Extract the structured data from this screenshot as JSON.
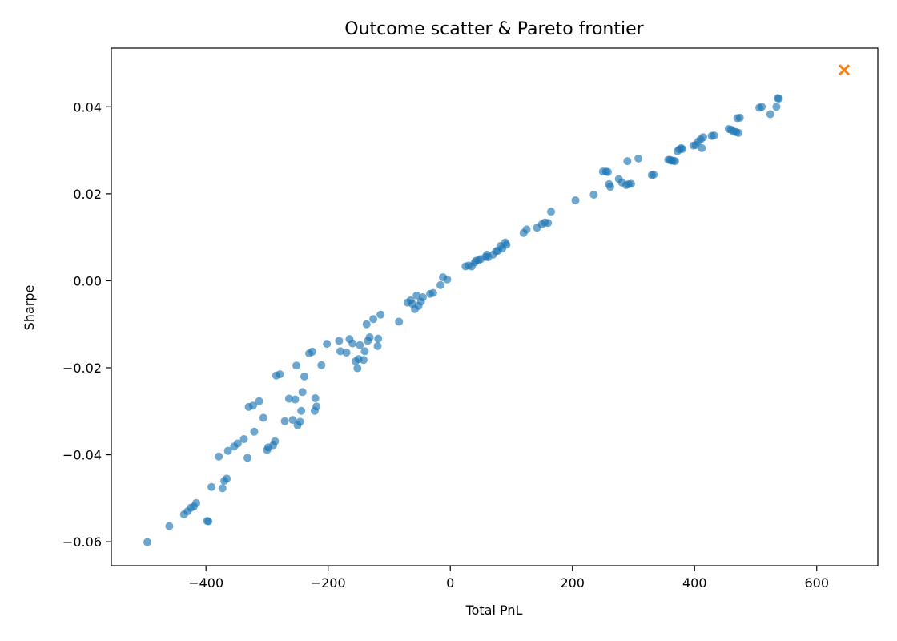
{
  "chart_data": {
    "type": "scatter",
    "title": "Outcome scatter & Pareto frontier",
    "xlabel": "Total PnL",
    "ylabel": "Sharpe",
    "xlim": [
      -555,
      700
    ],
    "ylim": [
      -0.0655,
      0.0535
    ],
    "xticks": [
      -400,
      -200,
      0,
      200,
      400,
      600
    ],
    "xtick_labels": [
      "−400",
      "−200",
      "0",
      "200",
      "400",
      "600"
    ],
    "yticks": [
      -0.06,
      -0.04,
      -0.02,
      0.0,
      0.02,
      0.04
    ],
    "ytick_labels": [
      "−0.06",
      "−0.04",
      "−0.02",
      "0.00",
      "0.02",
      "0.04"
    ],
    "grid": false,
    "legend": false,
    "series": [
      {
        "marker": "circle",
        "color": "#1f77b4",
        "alpha": 0.65,
        "points": [
          [
            -496,
            -0.0601
          ],
          [
            -460,
            -0.0564
          ],
          [
            -436,
            -0.0537
          ],
          [
            -430,
            -0.053
          ],
          [
            -425,
            -0.0522
          ],
          [
            -420,
            -0.0519
          ],
          [
            -416,
            -0.0511
          ],
          [
            -398,
            -0.0552
          ],
          [
            -396,
            -0.0553
          ],
          [
            -391,
            -0.0474
          ],
          [
            -379,
            -0.0404
          ],
          [
            -373,
            -0.0477
          ],
          [
            -370,
            -0.046
          ],
          [
            -366,
            -0.0455
          ],
          [
            -364,
            -0.0391
          ],
          [
            -354,
            -0.0381
          ],
          [
            -348,
            -0.0374
          ],
          [
            -338,
            -0.0364
          ],
          [
            -332,
            -0.0407
          ],
          [
            -330,
            -0.029
          ],
          [
            -323,
            -0.0287
          ],
          [
            -321,
            -0.0347
          ],
          [
            -313,
            -0.0277
          ],
          [
            -306,
            -0.0315
          ],
          [
            -300,
            -0.0389
          ],
          [
            -298,
            -0.0383
          ],
          [
            -290,
            -0.0378
          ],
          [
            -287,
            -0.0369
          ],
          [
            -285,
            -0.0218
          ],
          [
            -279,
            -0.0215
          ],
          [
            -271,
            -0.0323
          ],
          [
            -264,
            -0.0271
          ],
          [
            -258,
            -0.032
          ],
          [
            -254,
            -0.0273
          ],
          [
            -252,
            -0.0195
          ],
          [
            -250,
            -0.0332
          ],
          [
            -246,
            -0.0324
          ],
          [
            -244,
            -0.0299
          ],
          [
            -242,
            -0.0256
          ],
          [
            -239,
            -0.022
          ],
          [
            -231,
            -0.0167
          ],
          [
            -226,
            -0.0163
          ],
          [
            -222,
            -0.0299
          ],
          [
            -221,
            -0.027
          ],
          [
            -219,
            -0.0289
          ],
          [
            -211,
            -0.0194
          ],
          [
            -202,
            -0.0145
          ],
          [
            -182,
            -0.0138
          ],
          [
            -180,
            -0.0162
          ],
          [
            -170,
            -0.0165
          ],
          [
            -165,
            -0.0134
          ],
          [
            -160,
            -0.0144
          ],
          [
            -155,
            -0.0185
          ],
          [
            -152,
            -0.0201
          ],
          [
            -150,
            -0.018
          ],
          [
            -148,
            -0.0148
          ],
          [
            -142,
            -0.0182
          ],
          [
            -140,
            -0.0162
          ],
          [
            -137,
            -0.01
          ],
          [
            -135,
            -0.0138
          ],
          [
            -132,
            -0.013
          ],
          [
            -126,
            -0.0088
          ],
          [
            -119,
            -0.015
          ],
          [
            -118,
            -0.0133
          ],
          [
            -114,
            -0.0078
          ],
          [
            -84,
            -0.0094
          ],
          [
            -70,
            -0.005
          ],
          [
            -65,
            -0.0045
          ],
          [
            -62,
            -0.0053
          ],
          [
            -58,
            -0.0065
          ],
          [
            -55,
            -0.0034
          ],
          [
            -52,
            -0.0058
          ],
          [
            -48,
            -0.0048
          ],
          [
            -45,
            -0.0038
          ],
          [
            -33,
            -0.003
          ],
          [
            -28,
            -0.0028
          ],
          [
            -16,
            -0.001
          ],
          [
            -12,
            0.0008
          ],
          [
            -5,
            0.0003
          ],
          [
            25,
            0.0033
          ],
          [
            30,
            0.0035
          ],
          [
            35,
            0.0033
          ],
          [
            40,
            0.0042
          ],
          [
            42,
            0.0046
          ],
          [
            46,
            0.0047
          ],
          [
            50,
            0.005
          ],
          [
            58,
            0.0055
          ],
          [
            60,
            0.006
          ],
          [
            62,
            0.0054
          ],
          [
            70,
            0.006
          ],
          [
            75,
            0.0068
          ],
          [
            78,
            0.0069
          ],
          [
            82,
            0.008
          ],
          [
            85,
            0.0074
          ],
          [
            90,
            0.0088
          ],
          [
            92,
            0.0083
          ],
          [
            120,
            0.011
          ],
          [
            125,
            0.0118
          ],
          [
            142,
            0.0122
          ],
          [
            150,
            0.013
          ],
          [
            155,
            0.0134
          ],
          [
            160,
            0.0133
          ],
          [
            165,
            0.0159
          ],
          [
            205,
            0.0185
          ],
          [
            235,
            0.0198
          ],
          [
            250,
            0.0251
          ],
          [
            255,
            0.0251
          ],
          [
            258,
            0.025
          ],
          [
            260,
            0.0222
          ],
          [
            262,
            0.0216
          ],
          [
            276,
            0.0234
          ],
          [
            281,
            0.0226
          ],
          [
            288,
            0.022
          ],
          [
            290,
            0.0275
          ],
          [
            292,
            0.0222
          ],
          [
            296,
            0.0223
          ],
          [
            308,
            0.0281
          ],
          [
            330,
            0.0243
          ],
          [
            333,
            0.0244
          ],
          [
            357,
            0.0278
          ],
          [
            360,
            0.0278
          ],
          [
            362,
            0.0276
          ],
          [
            365,
            0.0276
          ],
          [
            368,
            0.0275
          ],
          [
            372,
            0.0298
          ],
          [
            375,
            0.0302
          ],
          [
            378,
            0.0305
          ],
          [
            380,
            0.0303
          ],
          [
            398,
            0.0311
          ],
          [
            402,
            0.0312
          ],
          [
            406,
            0.032
          ],
          [
            410,
            0.0325
          ],
          [
            412,
            0.0305
          ],
          [
            414,
            0.033
          ],
          [
            428,
            0.0333
          ],
          [
            432,
            0.0334
          ],
          [
            456,
            0.0349
          ],
          [
            460,
            0.0347
          ],
          [
            464,
            0.0343
          ],
          [
            468,
            0.0342
          ],
          [
            472,
            0.034
          ],
          [
            470,
            0.0374
          ],
          [
            474,
            0.0375
          ],
          [
            506,
            0.0398
          ],
          [
            510,
            0.04
          ],
          [
            524,
            0.0383
          ],
          [
            534,
            0.04
          ],
          [
            536,
            0.042
          ],
          [
            538,
            0.0419
          ]
        ]
      },
      {
        "marker": "x",
        "color": "#ff7f0e",
        "alpha": 1.0,
        "points": [
          [
            645,
            0.0485
          ]
        ]
      }
    ]
  }
}
